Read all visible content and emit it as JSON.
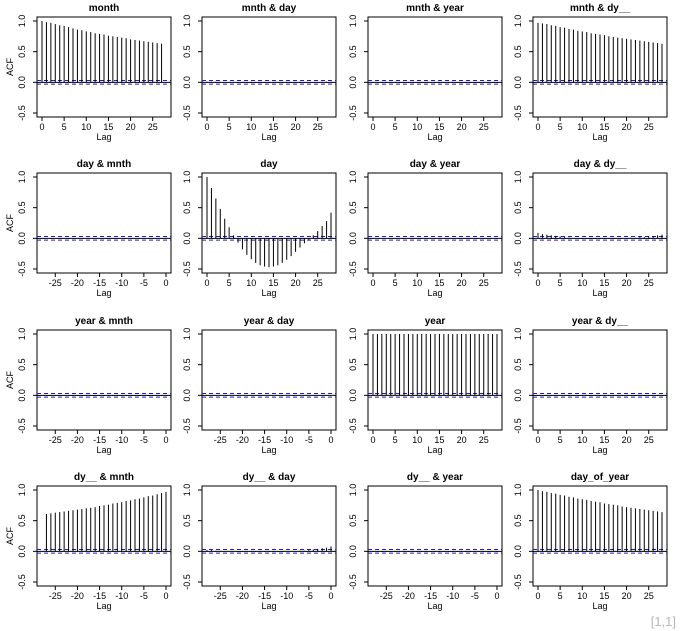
{
  "page_label": "[1,1]",
  "colors": {
    "spike": "#000000",
    "ci": "#1f1fbf",
    "zero": "#000000",
    "frame": "#000000"
  },
  "chart_data": [
    {
      "type": "bar",
      "title": "month",
      "ylabel": "ACF",
      "xlabel": "Lag",
      "xticks": [
        "0",
        "5",
        "10",
        "15",
        "20",
        "25"
      ],
      "yticks": [
        "-0.5",
        "0.0",
        "0.5",
        "1.0"
      ],
      "xlim": [
        0,
        28
      ],
      "ylim": [
        -0.5,
        1.0
      ],
      "ci": 0.03,
      "lags": [
        0,
        1,
        2,
        3,
        4,
        5,
        6,
        7,
        8,
        9,
        10,
        11,
        12,
        13,
        14,
        15,
        16,
        17,
        18,
        19,
        20,
        21,
        22,
        23,
        24,
        25,
        26,
        27
      ],
      "values": [
        1.0,
        0.98,
        0.97,
        0.95,
        0.93,
        0.92,
        0.9,
        0.88,
        0.86,
        0.85,
        0.83,
        0.82,
        0.8,
        0.79,
        0.78,
        0.76,
        0.75,
        0.74,
        0.73,
        0.72,
        0.7,
        0.69,
        0.68,
        0.67,
        0.66,
        0.65,
        0.64,
        0.63
      ]
    },
    {
      "type": "bar",
      "title": "mnth & day",
      "ylabel": "",
      "xlabel": "Lag",
      "xticks": [
        "0",
        "5",
        "10",
        "15",
        "20",
        "25"
      ],
      "yticks": [
        "-0.5",
        "0.0",
        "0.5",
        "1.0"
      ],
      "xlim": [
        0,
        28
      ],
      "ylim": [
        -0.5,
        1.0
      ],
      "ci": 0.03,
      "lags": [
        0,
        1,
        2,
        3,
        4,
        5,
        6,
        7,
        8,
        9,
        10,
        11,
        12,
        13,
        14,
        15,
        16,
        17,
        18,
        19,
        20,
        21,
        22,
        23,
        24,
        25,
        26,
        27,
        28
      ],
      "values": [
        0.01,
        0.01,
        0.01,
        0.0,
        0.0,
        0.0,
        0.0,
        -0.01,
        -0.01,
        -0.01,
        -0.01,
        -0.01,
        -0.01,
        -0.01,
        -0.01,
        -0.01,
        -0.01,
        -0.01,
        -0.01,
        -0.01,
        -0.01,
        -0.01,
        0.0,
        0.0,
        0.0,
        0.0,
        0.01,
        0.01,
        0.01
      ]
    },
    {
      "type": "bar",
      "title": "mnth & year",
      "ylabel": "",
      "xlabel": "Lag",
      "xticks": [
        "0",
        "5",
        "10",
        "15",
        "20",
        "25"
      ],
      "yticks": [
        "-0.5",
        "0.0",
        "0.5",
        "1.0"
      ],
      "xlim": [
        0,
        28
      ],
      "ylim": [
        -0.5,
        1.0
      ],
      "ci": 0.03,
      "lags": [
        0,
        1,
        2,
        3,
        4,
        5,
        6,
        7,
        8,
        9,
        10,
        11,
        12,
        13,
        14,
        15,
        16,
        17,
        18,
        19,
        20,
        21,
        22,
        23,
        24,
        25,
        26,
        27,
        28
      ],
      "values": [
        -0.01,
        -0.01,
        -0.01,
        -0.01,
        -0.01,
        -0.01,
        -0.01,
        -0.01,
        -0.01,
        -0.01,
        -0.01,
        -0.01,
        -0.01,
        -0.01,
        -0.01,
        -0.01,
        -0.01,
        -0.01,
        -0.01,
        -0.01,
        -0.01,
        -0.01,
        -0.01,
        -0.01,
        -0.01,
        -0.01,
        -0.01,
        -0.01,
        -0.01
      ]
    },
    {
      "type": "bar",
      "title": "mnth & dy__",
      "ylabel": "",
      "xlabel": "Lag",
      "xticks": [
        "0",
        "5",
        "10",
        "15",
        "20",
        "25"
      ],
      "yticks": [
        "-0.5",
        "0.0",
        "0.5",
        "1.0"
      ],
      "xlim": [
        0,
        28
      ],
      "ylim": [
        -0.5,
        1.0
      ],
      "ci": 0.03,
      "lags": [
        0,
        1,
        2,
        3,
        4,
        5,
        6,
        7,
        8,
        9,
        10,
        11,
        12,
        13,
        14,
        15,
        16,
        17,
        18,
        19,
        20,
        21,
        22,
        23,
        24,
        25,
        26,
        27,
        28
      ],
      "values": [
        0.97,
        0.96,
        0.95,
        0.93,
        0.92,
        0.9,
        0.89,
        0.87,
        0.86,
        0.84,
        0.83,
        0.82,
        0.8,
        0.79,
        0.78,
        0.77,
        0.75,
        0.74,
        0.73,
        0.72,
        0.71,
        0.7,
        0.69,
        0.68,
        0.67,
        0.66,
        0.65,
        0.64,
        0.63
      ]
    },
    {
      "type": "bar",
      "title": "day & mnth",
      "ylabel": "ACF",
      "xlabel": "Lag",
      "xticks": [
        "-25",
        "-20",
        "-15",
        "-10",
        "-5",
        "0"
      ],
      "yticks": [
        "-0.5",
        "0.0",
        "0.5",
        "1.0"
      ],
      "xlim": [
        -28,
        0
      ],
      "ylim": [
        -0.5,
        1.0
      ],
      "ci": 0.03,
      "lags": [
        -27,
        -26,
        -25,
        -24,
        -23,
        -22,
        -21,
        -20,
        -19,
        -18,
        -17,
        -16,
        -15,
        -14,
        -13,
        -12,
        -11,
        -10,
        -9,
        -8,
        -7,
        -6,
        -5,
        -4,
        -3,
        -2,
        -1,
        0
      ],
      "values": [
        0.0,
        0.0,
        0.0,
        0.0,
        0.0,
        0.0,
        0.0,
        0.0,
        0.0,
        0.0,
        0.0,
        0.0,
        0.0,
        0.0,
        0.0,
        0.0,
        0.0,
        0.0,
        0.0,
        0.0,
        0.0,
        0.0,
        0.0,
        0.0,
        0.0,
        0.0,
        0.0,
        0.01
      ]
    },
    {
      "type": "bar",
      "title": "day",
      "ylabel": "",
      "xlabel": "Lag",
      "xticks": [
        "0",
        "5",
        "10",
        "15",
        "20",
        "25"
      ],
      "yticks": [
        "-0.5",
        "0.0",
        "0.5",
        "1.0"
      ],
      "xlim": [
        0,
        28
      ],
      "ylim": [
        -0.5,
        1.0
      ],
      "ci": 0.03,
      "lags": [
        0,
        1,
        2,
        3,
        4,
        5,
        6,
        7,
        8,
        9,
        10,
        11,
        12,
        13,
        14,
        15,
        16,
        17,
        18,
        19,
        20,
        21,
        22,
        23,
        24,
        25,
        26,
        27,
        28
      ],
      "values": [
        1.0,
        0.82,
        0.65,
        0.48,
        0.32,
        0.18,
        0.05,
        -0.07,
        -0.18,
        -0.27,
        -0.34,
        -0.4,
        -0.44,
        -0.46,
        -0.47,
        -0.46,
        -0.44,
        -0.4,
        -0.35,
        -0.29,
        -0.22,
        -0.15,
        -0.08,
        -0.02,
        0.05,
        0.12,
        0.2,
        0.28,
        0.42
      ]
    },
    {
      "type": "bar",
      "title": "day & year",
      "ylabel": "",
      "xlabel": "Lag",
      "xticks": [
        "0",
        "5",
        "10",
        "15",
        "20",
        "25"
      ],
      "yticks": [
        "-0.5",
        "0.0",
        "0.5",
        "1.0"
      ],
      "xlim": [
        0,
        28
      ],
      "ylim": [
        -0.5,
        1.0
      ],
      "ci": 0.03,
      "lags": [
        0,
        1,
        2,
        3,
        4,
        5,
        6,
        7,
        8,
        9,
        10,
        11,
        12,
        13,
        14,
        15,
        16,
        17,
        18,
        19,
        20,
        21,
        22,
        23,
        24,
        25,
        26,
        27,
        28
      ],
      "values": [
        0.0,
        0.0,
        0.0,
        0.0,
        0.0,
        0.0,
        0.0,
        0.0,
        0.0,
        0.0,
        0.0,
        0.0,
        0.0,
        0.0,
        0.0,
        0.0,
        0.0,
        0.0,
        0.0,
        0.0,
        0.0,
        0.0,
        0.0,
        0.0,
        0.0,
        0.0,
        0.0,
        0.0,
        0.0
      ]
    },
    {
      "type": "bar",
      "title": "day & dy__",
      "ylabel": "",
      "xlabel": "Lag",
      "xticks": [
        "0",
        "5",
        "10",
        "15",
        "20",
        "25"
      ],
      "yticks": [
        "-0.5",
        "0.0",
        "0.5",
        "1.0"
      ],
      "xlim": [
        0,
        28
      ],
      "ylim": [
        -0.5,
        1.0
      ],
      "ci": 0.03,
      "lags": [
        0,
        1,
        2,
        3,
        4,
        5,
        6,
        7,
        8,
        9,
        10,
        11,
        12,
        13,
        14,
        15,
        16,
        17,
        18,
        19,
        20,
        21,
        22,
        23,
        24,
        25,
        26,
        27,
        28
      ],
      "values": [
        0.09,
        0.07,
        0.06,
        0.05,
        0.04,
        0.03,
        0.02,
        0.01,
        0.0,
        0.0,
        -0.01,
        -0.01,
        -0.01,
        -0.01,
        -0.01,
        -0.01,
        -0.01,
        -0.01,
        0.0,
        0.0,
        0.0,
        0.01,
        0.01,
        0.02,
        0.02,
        0.03,
        0.04,
        0.05,
        0.06
      ]
    },
    {
      "type": "bar",
      "title": "year & mnth",
      "ylabel": "ACF",
      "xlabel": "Lag",
      "xticks": [
        "-25",
        "-20",
        "-15",
        "-10",
        "-5",
        "0"
      ],
      "yticks": [
        "-0.5",
        "0.0",
        "0.5",
        "1.0"
      ],
      "xlim": [
        -28,
        0
      ],
      "ylim": [
        -0.5,
        1.0
      ],
      "ci": 0.03,
      "lags": [
        -27,
        -26,
        -25,
        -24,
        -23,
        -22,
        -21,
        -20,
        -19,
        -18,
        -17,
        -16,
        -15,
        -14,
        -13,
        -12,
        -11,
        -10,
        -9,
        -8,
        -7,
        -6,
        -5,
        -4,
        -3,
        -2,
        -1,
        0
      ],
      "values": [
        -0.01,
        -0.01,
        -0.01,
        -0.01,
        -0.01,
        -0.01,
        -0.01,
        -0.01,
        -0.01,
        -0.01,
        -0.01,
        -0.01,
        -0.01,
        -0.01,
        -0.01,
        -0.01,
        -0.01,
        -0.01,
        -0.01,
        -0.01,
        -0.01,
        -0.01,
        -0.01,
        -0.01,
        -0.01,
        -0.01,
        -0.01,
        -0.01
      ]
    },
    {
      "type": "bar",
      "title": "year & day",
      "ylabel": "",
      "xlabel": "Lag",
      "xticks": [
        "-25",
        "-20",
        "-15",
        "-10",
        "-5",
        "0"
      ],
      "yticks": [
        "-0.5",
        "0.0",
        "0.5",
        "1.0"
      ],
      "xlim": [
        -28,
        0
      ],
      "ylim": [
        -0.5,
        1.0
      ],
      "ci": 0.03,
      "lags": [
        -28,
        -27,
        -26,
        -25,
        -24,
        -23,
        -22,
        -21,
        -20,
        -19,
        -18,
        -17,
        -16,
        -15,
        -14,
        -13,
        -12,
        -11,
        -10,
        -9,
        -8,
        -7,
        -6,
        -5,
        -4,
        -3,
        -2,
        -1,
        0
      ],
      "values": [
        0.0,
        0.0,
        0.0,
        0.0,
        0.0,
        0.0,
        0.0,
        0.0,
        0.0,
        0.0,
        0.0,
        0.0,
        0.0,
        0.0,
        0.0,
        0.0,
        0.0,
        0.0,
        0.0,
        0.0,
        0.0,
        0.0,
        0.0,
        0.0,
        0.0,
        0.0,
        0.0,
        0.0,
        0.0
      ]
    },
    {
      "type": "bar",
      "title": "year",
      "ylabel": "",
      "xlabel": "Lag",
      "xticks": [
        "0",
        "5",
        "10",
        "15",
        "20",
        "25"
      ],
      "yticks": [
        "-0.5",
        "0.0",
        "0.5",
        "1.0"
      ],
      "xlim": [
        0,
        28
      ],
      "ylim": [
        -0.5,
        1.0
      ],
      "ci": 0.03,
      "lags": [
        0,
        1,
        2,
        3,
        4,
        5,
        6,
        7,
        8,
        9,
        10,
        11,
        12,
        13,
        14,
        15,
        16,
        17,
        18,
        19,
        20,
        21,
        22,
        23,
        24,
        25,
        26,
        27,
        28
      ],
      "values": [
        1.0,
        1.0,
        1.0,
        1.0,
        1.0,
        1.0,
        1.0,
        1.0,
        1.0,
        1.0,
        1.0,
        1.0,
        1.0,
        1.0,
        1.0,
        1.0,
        1.0,
        1.0,
        1.0,
        1.0,
        1.0,
        1.0,
        1.0,
        1.0,
        1.0,
        1.0,
        1.0,
        1.0,
        1.0
      ]
    },
    {
      "type": "bar",
      "title": "year & dy__",
      "ylabel": "",
      "xlabel": "Lag",
      "xticks": [
        "0",
        "5",
        "10",
        "15",
        "20",
        "25"
      ],
      "yticks": [
        "-0.5",
        "0.0",
        "0.5",
        "1.0"
      ],
      "xlim": [
        0,
        28
      ],
      "ylim": [
        -0.5,
        1.0
      ],
      "ci": 0.03,
      "lags": [
        0,
        1,
        2,
        3,
        4,
        5,
        6,
        7,
        8,
        9,
        10,
        11,
        12,
        13,
        14,
        15,
        16,
        17,
        18,
        19,
        20,
        21,
        22,
        23,
        24,
        25,
        26,
        27,
        28
      ],
      "values": [
        -0.01,
        -0.01,
        -0.01,
        -0.01,
        -0.01,
        -0.01,
        -0.01,
        -0.01,
        -0.01,
        -0.01,
        -0.01,
        -0.01,
        -0.01,
        -0.01,
        -0.01,
        -0.01,
        -0.01,
        -0.01,
        -0.01,
        -0.01,
        -0.01,
        -0.01,
        -0.01,
        -0.01,
        -0.01,
        -0.01,
        -0.01,
        -0.01,
        -0.01
      ]
    },
    {
      "type": "bar",
      "title": "dy__ & mnth",
      "ylabel": "ACF",
      "xlabel": "Lag",
      "xticks": [
        "-25",
        "-20",
        "-15",
        "-10",
        "-5",
        "0"
      ],
      "yticks": [
        "-0.5",
        "0.0",
        "0.5",
        "1.0"
      ],
      "xlim": [
        -28,
        0
      ],
      "ylim": [
        -0.5,
        1.0
      ],
      "ci": 0.03,
      "lags": [
        -27,
        -26,
        -25,
        -24,
        -23,
        -22,
        -21,
        -20,
        -19,
        -18,
        -17,
        -16,
        -15,
        -14,
        -13,
        -12,
        -11,
        -10,
        -9,
        -8,
        -7,
        -6,
        -5,
        -4,
        -3,
        -2,
        -1,
        0
      ],
      "values": [
        0.61,
        0.62,
        0.63,
        0.64,
        0.65,
        0.66,
        0.67,
        0.68,
        0.69,
        0.7,
        0.71,
        0.72,
        0.74,
        0.75,
        0.76,
        0.78,
        0.79,
        0.8,
        0.82,
        0.83,
        0.85,
        0.86,
        0.88,
        0.9,
        0.91,
        0.93,
        0.95,
        0.97
      ]
    },
    {
      "type": "bar",
      "title": "dy__ & day",
      "ylabel": "",
      "xlabel": "Lag",
      "xticks": [
        "-25",
        "-20",
        "-15",
        "-10",
        "-5",
        "0"
      ],
      "yticks": [
        "-0.5",
        "0.0",
        "0.5",
        "1.0"
      ],
      "xlim": [
        -28,
        0
      ],
      "ylim": [
        -0.5,
        1.0
      ],
      "ci": 0.03,
      "lags": [
        -28,
        -27,
        -26,
        -25,
        -24,
        -23,
        -22,
        -21,
        -20,
        -19,
        -18,
        -17,
        -16,
        -15,
        -14,
        -13,
        -12,
        -11,
        -10,
        -9,
        -8,
        -7,
        -6,
        -5,
        -4,
        -3,
        -2,
        -1,
        0
      ],
      "values": [
        0.02,
        0.02,
        0.01,
        0.01,
        0.0,
        0.0,
        0.0,
        -0.01,
        -0.01,
        -0.01,
        -0.01,
        -0.01,
        -0.01,
        -0.01,
        -0.01,
        -0.01,
        -0.01,
        -0.01,
        0.0,
        0.0,
        0.0,
        0.01,
        0.01,
        0.02,
        0.03,
        0.04,
        0.05,
        0.06,
        0.08
      ]
    },
    {
      "type": "bar",
      "title": "dy__ & year",
      "ylabel": "",
      "xlabel": "Lag",
      "xticks": [
        "-25",
        "-20",
        "-15",
        "-10",
        "-5",
        "0"
      ],
      "yticks": [
        "-0.5",
        "0.0",
        "0.5",
        "1.0"
      ],
      "xlim": [
        -28,
        0
      ],
      "ylim": [
        -0.5,
        1.0
      ],
      "ci": 0.03,
      "lags": [
        -28,
        -27,
        -26,
        -25,
        -24,
        -23,
        -22,
        -21,
        -20,
        -19,
        -18,
        -17,
        -16,
        -15,
        -14,
        -13,
        -12,
        -11,
        -10,
        -9,
        -8,
        -7,
        -6,
        -5,
        -4,
        -3,
        -2,
        -1,
        0
      ],
      "values": [
        -0.01,
        -0.01,
        -0.01,
        -0.01,
        -0.01,
        -0.01,
        -0.01,
        -0.01,
        -0.01,
        -0.01,
        -0.01,
        -0.01,
        -0.01,
        -0.01,
        -0.01,
        -0.01,
        -0.01,
        -0.01,
        -0.01,
        -0.01,
        -0.01,
        -0.01,
        -0.01,
        -0.01,
        -0.01,
        -0.01,
        -0.01,
        -0.01,
        -0.01
      ]
    },
    {
      "type": "bar",
      "title": "day_of_year",
      "ylabel": "",
      "xlabel": "Lag",
      "xticks": [
        "0",
        "5",
        "10",
        "15",
        "20",
        "25"
      ],
      "yticks": [
        "-0.5",
        "0.0",
        "0.5",
        "1.0"
      ],
      "xlim": [
        0,
        28
      ],
      "ylim": [
        -0.5,
        1.0
      ],
      "ci": 0.03,
      "lags": [
        0,
        1,
        2,
        3,
        4,
        5,
        6,
        7,
        8,
        9,
        10,
        11,
        12,
        13,
        14,
        15,
        16,
        17,
        18,
        19,
        20,
        21,
        22,
        23,
        24,
        25,
        26,
        27,
        28
      ],
      "values": [
        1.0,
        0.98,
        0.97,
        0.95,
        0.94,
        0.92,
        0.91,
        0.89,
        0.88,
        0.86,
        0.85,
        0.84,
        0.82,
        0.81,
        0.8,
        0.78,
        0.77,
        0.76,
        0.75,
        0.73,
        0.72,
        0.71,
        0.7,
        0.69,
        0.68,
        0.67,
        0.66,
        0.65,
        0.64
      ]
    }
  ]
}
